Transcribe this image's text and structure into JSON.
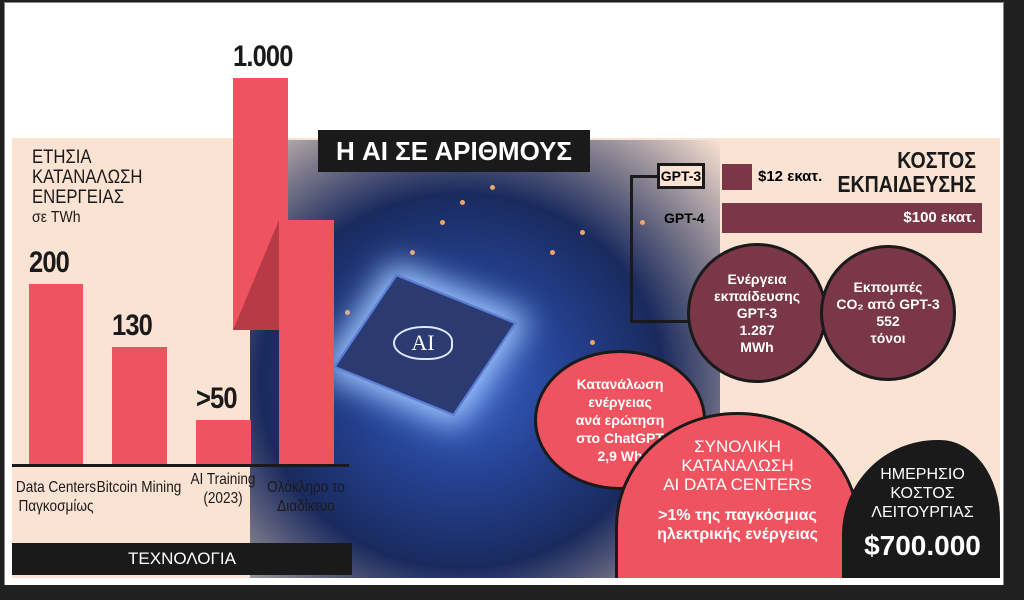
{
  "title": "Η AI ΣΕ ΑΡΙΘΜΟΥΣ",
  "chart_data": {
    "type": "bar",
    "title": "ΕΤΗΣΙΑ ΚΑΤΑΝΑΛΩΣΗ ΕΝΕΡΓΕΙΑΣ",
    "subtitle": "σε TWh",
    "xlabel": "ΤΕΧΝΟΛΟΓΙΑ",
    "categories": [
      "Data Centers Παγκοσμίως",
      "Bitcoin Mining",
      "AI Training (2023)",
      "Ολόκληρο το Διαδίκτυο"
    ],
    "values": [
      200,
      130,
      50,
      1000
    ],
    "value_labels": [
      "200",
      "130",
      ">50",
      "1.000"
    ],
    "ylabel": "",
    "color": "#ef535f"
  },
  "cost": {
    "heading_line1": "ΚΟΣΤΟΣ",
    "heading_line2": "ΕΚΠΑΙΔΕΥΣΗΣ",
    "items": [
      {
        "model": "GPT-3",
        "label": "$12 εκατ.",
        "value": 12
      },
      {
        "model": "GPT-4",
        "label": "$100 εκατ.",
        "value": 100
      }
    ],
    "color": "#7a3748"
  },
  "circles": {
    "energy": [
      "Ενέργεια",
      "εκπαίδευσης",
      "GPT-3",
      "1.287",
      "MWh"
    ],
    "co2": [
      "Εκπομπές",
      "CO₂ από GPT-3",
      "552",
      "τόνοι"
    ],
    "query": [
      "Κατανάλωση",
      "ενέργειας",
      "ανά ερώτηση",
      "στο ChatGPT",
      "2,9 Wh"
    ],
    "total": {
      "lines": [
        "ΣΥΝΟΛΙΚΗ",
        "ΚΑΤΑΝΑΛΩΣΗ",
        "AI DATA CENTERS"
      ],
      "sub": [
        ">1% της παγκόσμιας",
        "ηλεκτρικής ενέργειας"
      ]
    },
    "daily": {
      "lines": [
        "ΗΜΕΡΗΣΙΟ",
        "ΚΟΣΤΟΣ",
        "ΛΕΙΤΟΥΡΓΙΑΣ"
      ],
      "value": "$700.000"
    }
  },
  "chip_label": "AI"
}
